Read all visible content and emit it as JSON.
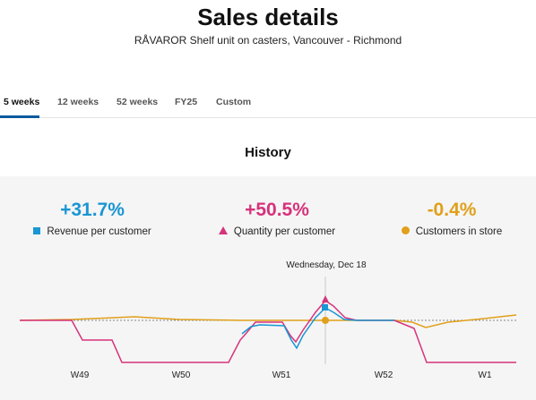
{
  "header": {
    "title": "Sales details",
    "subtitle": "RÅVAROR Shelf unit on casters, Vancouver - Richmond"
  },
  "tabs": [
    {
      "label": "5 weeks",
      "active": true
    },
    {
      "label": "12 weeks",
      "active": false
    },
    {
      "label": "52 weeks",
      "active": false
    },
    {
      "label": "FY25",
      "active": false
    },
    {
      "label": "Custom",
      "active": false
    }
  ],
  "history": {
    "title": "History",
    "tooltip_date": "Wednesday, Dec 18"
  },
  "kpis": [
    {
      "value": "+31.7%",
      "label": "Revenue per customer",
      "color": "#1a96d4",
      "marker": "square"
    },
    {
      "value": "+50.5%",
      "label": "Quantity per customer",
      "color": "#d6337b",
      "marker": "triangle"
    },
    {
      "value": "-0.4%",
      "label": "Customers in store",
      "color": "#e0a01a",
      "marker": "circle"
    }
  ],
  "chart_data": {
    "type": "line",
    "x_ticks": [
      "W49",
      "W50",
      "W51",
      "W52",
      "W1"
    ],
    "series": [
      {
        "name": "Revenue per customer",
        "color": "#1a96d4",
        "values": [
          0,
          0,
          -0.4,
          -0.55,
          0.45,
          0,
          0
        ]
      },
      {
        "name": "Quantity per customer",
        "color": "#d6337b",
        "values": [
          0,
          -0.5,
          -1,
          -1,
          0.5,
          0,
          -1
        ]
      },
      {
        "name": "Customers in store",
        "color": "#e0a01a",
        "values": [
          0,
          0.1,
          0,
          0,
          0,
          0,
          0.1
        ]
      }
    ],
    "highlight": {
      "date": "Wednesday, Dec 18"
    },
    "baseline": 0
  }
}
